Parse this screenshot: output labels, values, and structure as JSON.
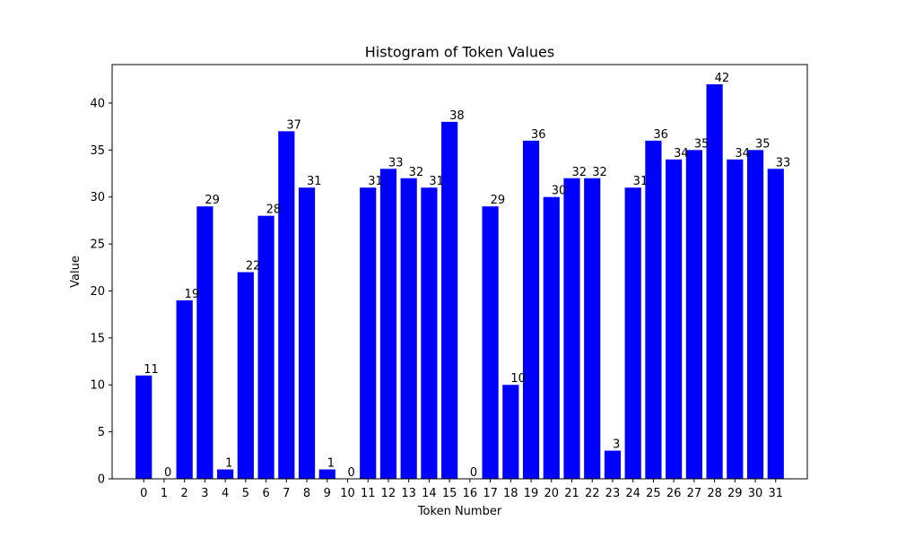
{
  "chart_data": {
    "type": "bar",
    "title": "Histogram of Token Values",
    "xlabel": "Token Number",
    "ylabel": "Value",
    "categories": [
      "0",
      "1",
      "2",
      "3",
      "4",
      "5",
      "6",
      "7",
      "8",
      "9",
      "10",
      "11",
      "12",
      "13",
      "14",
      "15",
      "16",
      "17",
      "18",
      "19",
      "20",
      "21",
      "22",
      "23",
      "24",
      "25",
      "26",
      "27",
      "28",
      "29",
      "30",
      "31"
    ],
    "values": [
      11,
      0,
      19,
      29,
      1,
      22,
      28,
      37,
      31,
      1,
      0,
      31,
      33,
      32,
      31,
      38,
      0,
      29,
      10,
      36,
      30,
      32,
      32,
      3,
      31,
      36,
      34,
      35,
      42,
      34,
      35,
      33
    ],
    "ylim": [
      0,
      44.1
    ],
    "yticks": [
      0,
      5,
      10,
      15,
      20,
      25,
      30,
      35,
      40
    ],
    "bar_color": "#0000ff",
    "grid": false
  }
}
